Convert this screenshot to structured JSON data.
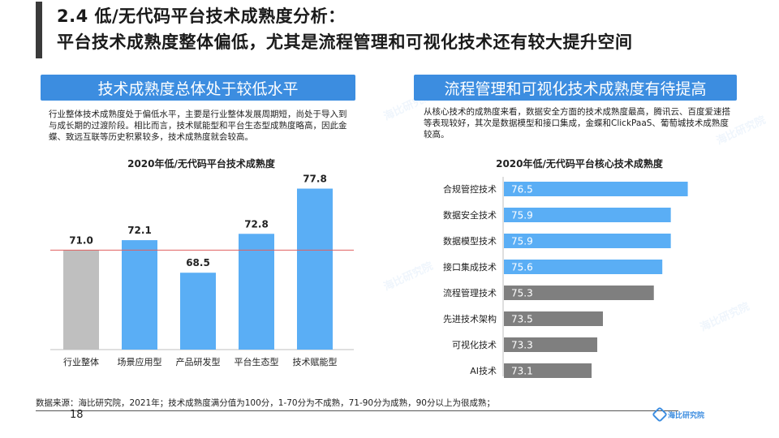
{
  "header": {
    "title_line1": "2.4 低/无代码平台技术成熟度分析：",
    "title_line2": "平台技术成熟度整体偏低，尤其是流程管理和可视化技术还有较大提升空间"
  },
  "left": {
    "banner": "技术成熟度总体处于较低水平",
    "description": "行业整体技术成熟度处于偏低水平，主要是行业整体发展周期短，尚处于导入到与成长期的过渡阶段。相比而言，技术赋能型和平台生态型成熟度略高，因此金蝶、致远互联等历史积累较多，技术成熟度就会较高。"
  },
  "right": {
    "banner": "流程管理和可视化技术成熟度有待提高",
    "description": "从核心技术的成熟度来看，数据安全方面的技术成熟度最高，腾讯云、百度爱速搭等表现较好，其次是数据模型和接口集成，金蝶和ClickPaaS、葡萄城技术成熟度较高。"
  },
  "chart_data": [
    {
      "type": "bar",
      "title": "2020年低/无代码平台技术成熟度",
      "categories": [
        "行业整体",
        "场景应用型",
        "产品研发型",
        "平台生态型",
        "技术赋能型"
      ],
      "values": [
        71.0,
        72.1,
        68.5,
        72.8,
        77.8
      ],
      "value_labels": [
        "71.0",
        "72.1",
        "68.5",
        "72.8",
        "77.8"
      ],
      "reference_value": 71.0,
      "ylim": [
        60,
        80
      ],
      "colors": [
        "#bfbfbf",
        "#5aaef5",
        "#5aaef5",
        "#5aaef5",
        "#5aaef5"
      ],
      "reference_color": "#e06060",
      "xlabel": "",
      "ylabel": ""
    },
    {
      "type": "bar",
      "orientation": "horizontal",
      "title": "2020年低/无代码平台核心技术成熟度",
      "categories": [
        "合规管控技术",
        "数据安全技术",
        "数据模型技术",
        "接口集成技术",
        "流程管理技术",
        "先进技术架构",
        "可视化技术",
        "AI技术"
      ],
      "values": [
        76.5,
        75.9,
        75.9,
        75.6,
        75.3,
        73.5,
        73.3,
        73.1
      ],
      "value_labels": [
        "76.5",
        "75.9",
        "75.9",
        "75.6",
        "75.3",
        "73.5",
        "73.3",
        "73.1"
      ],
      "xlim": [
        70,
        77
      ],
      "colors": [
        "#5aaef5",
        "#5aaef5",
        "#5aaef5",
        "#5aaef5",
        "#7f7f7f",
        "#7f7f7f",
        "#7f7f7f",
        "#7f7f7f"
      ],
      "xlabel": "",
      "ylabel": ""
    }
  ],
  "footer": {
    "source": "数据来源：海比研究院，2021年；技术成熟度满分值为100分，1-70分为不成熟，71-90分为成熟，90分以上为很成熟；",
    "page_number": "18",
    "logo_text": "海比研究院"
  }
}
